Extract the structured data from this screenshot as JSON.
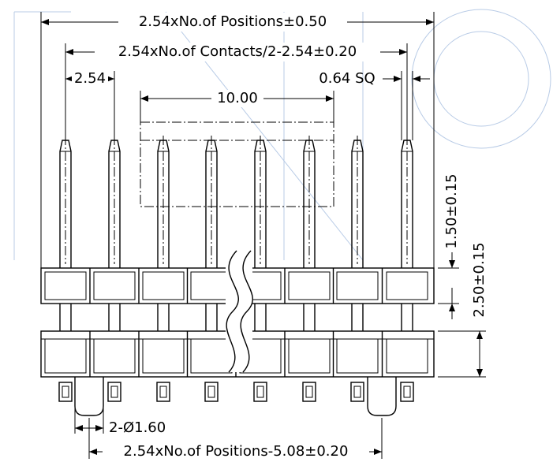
{
  "dimensions": [
    {
      "label": "2.54xNo.of Positions±0.50"
    },
    {
      "label": "2.54xNo.of Contacts/2-2.54±0.20"
    },
    {
      "label": "2.54"
    },
    {
      "label": "0.64 SQ"
    },
    {
      "label": "10.00"
    },
    {
      "label": "1.50±0.15"
    },
    {
      "label": "2.50±0.15"
    },
    {
      "label": "2-Ø1.60"
    },
    {
      "label": "2.54xNo.of Positions-5.08±0.20"
    }
  ]
}
